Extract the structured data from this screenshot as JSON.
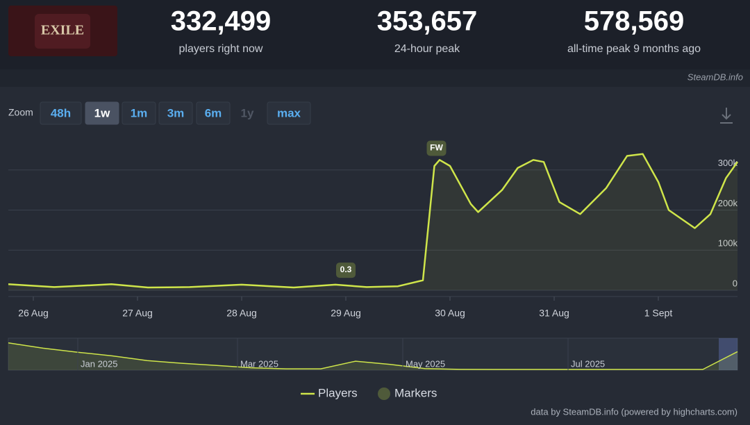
{
  "header": {
    "logo_text": "EXILE",
    "stats": [
      {
        "value": "332,499",
        "label": "players right now"
      },
      {
        "value": "353,657",
        "label": "24-hour peak"
      },
      {
        "value": "578,569",
        "label": "all-time peak 9 months ago"
      }
    ],
    "source": "SteamDB.info"
  },
  "zoom": {
    "label": "Zoom",
    "buttons": [
      "48h",
      "1w",
      "1m",
      "3m",
      "6m",
      "1y",
      "max"
    ],
    "active_index": 1,
    "disabled_index": 5
  },
  "chart_data": {
    "type": "line",
    "x": [
      -0.24,
      0.2,
      0.75,
      1.1,
      1.5,
      2.0,
      2.5,
      2.9,
      3.2,
      3.5,
      3.74,
      3.85,
      3.9,
      4.0,
      4.2,
      4.27,
      4.5,
      4.65,
      4.8,
      4.9,
      5.05,
      5.25,
      5.5,
      5.7,
      5.85,
      6.0,
      6.1,
      6.35,
      6.5,
      6.65,
      6.76
    ],
    "series": [
      {
        "name": "Players",
        "color": "#cfe54a",
        "values": [
          15000,
          8000,
          15000,
          7000,
          8000,
          14000,
          7000,
          14000,
          8000,
          10000,
          25000,
          310000,
          325000,
          310000,
          215000,
          195000,
          250000,
          305000,
          325000,
          320000,
          220000,
          190000,
          255000,
          335000,
          340000,
          270000,
          200000,
          155000,
          190000,
          280000,
          320000
        ]
      }
    ],
    "xlim": [
      -0.24,
      6.76
    ],
    "xticks": [
      {
        "value": 0,
        "label": "26 Aug"
      },
      {
        "value": 1,
        "label": "27 Aug"
      },
      {
        "value": 2,
        "label": "28 Aug"
      },
      {
        "value": 3,
        "label": "29 Aug"
      },
      {
        "value": 4,
        "label": "30 Aug"
      },
      {
        "value": 5,
        "label": "31 Aug"
      },
      {
        "value": 6,
        "label": "1 Sept"
      }
    ],
    "ylim": [
      0,
      400000
    ],
    "yticks": [
      0,
      {
        "value": 100000,
        "label": "100k"
      },
      {
        "value": 200000,
        "label": "200k"
      },
      {
        "value": 300000,
        "label": "300k"
      }
    ],
    "grid": true,
    "annotations": [
      {
        "x": 3.0,
        "label": "0.3"
      },
      {
        "x": 3.87,
        "label": "FW"
      }
    ],
    "marker_legend": "Markers",
    "marker_color": "#4f5a3a"
  },
  "navigator": {
    "values": [
      517000,
      416000,
      340000,
      270000,
      180000,
      130000,
      88000,
      45000,
      25000,
      25000,
      170000,
      110000,
      30000,
      15000,
      13000,
      13000,
      13000,
      13000,
      13000,
      13000,
      13000,
      350000
    ],
    "ylim": [
      0,
      580000
    ],
    "labels": [
      "Jan 2025",
      "Mar 2025",
      "May 2025",
      "Jul 2025"
    ]
  },
  "footer": "data by SteamDB.info (powered by highcharts.com)"
}
